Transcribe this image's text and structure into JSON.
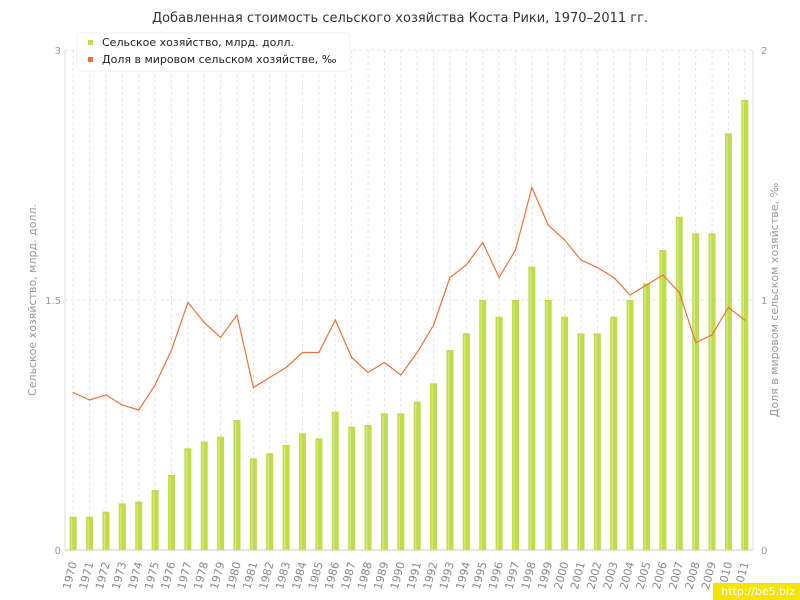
{
  "chart_data": {
    "type": "bar",
    "title": "Добавленная стоимость сельского хозяйства Коста Рики, 1970–2011 гг.",
    "ylabel": "Сельское хозяйство, млрд. долл.",
    "y2label": "Доля в мировом сельском хозяйстве, ‰",
    "ylim": [
      0,
      3
    ],
    "y2lim": [
      0,
      2
    ],
    "yticks": [
      "0",
      "1.5",
      "3"
    ],
    "y2ticks": [
      "0",
      "1",
      "2"
    ],
    "grid": true,
    "legend_position": "top-left",
    "categories": [
      "1970",
      "1971",
      "1972",
      "1973",
      "1974",
      "1975",
      "1976",
      "1977",
      "1978",
      "1979",
      "1980",
      "1981",
      "1982",
      "1983",
      "1984",
      "1985",
      "1986",
      "1987",
      "1988",
      "1989",
      "1990",
      "1991",
      "1992",
      "1993",
      "1994",
      "1995",
      "1996",
      "1997",
      "1998",
      "1999",
      "2000",
      "2001",
      "2002",
      "2003",
      "2004",
      "2005",
      "2006",
      "2007",
      "2008",
      "2009",
      "2010",
      "2011"
    ],
    "series": [
      {
        "name": "Сельское хозяйство, млрд. долл.",
        "type": "bar",
        "axis": "left",
        "color": "#bfdc4a",
        "values": [
          0.2,
          0.2,
          0.23,
          0.28,
          0.29,
          0.36,
          0.45,
          0.61,
          0.65,
          0.68,
          0.78,
          0.55,
          0.58,
          0.63,
          0.7,
          0.67,
          0.83,
          0.74,
          0.75,
          0.82,
          0.82,
          0.89,
          1.0,
          1.2,
          1.3,
          1.5,
          1.4,
          1.5,
          1.7,
          1.5,
          1.4,
          1.3,
          1.3,
          1.4,
          1.5,
          1.6,
          1.8,
          2.0,
          1.9,
          1.9,
          2.5,
          2.7
        ]
      },
      {
        "name": "Доля в мировом сельском хозяйстве, ‰",
        "type": "line",
        "axis": "right",
        "color": "#e8743b",
        "values": [
          0.63,
          0.6,
          0.62,
          0.58,
          0.56,
          0.66,
          0.8,
          0.99,
          0.91,
          0.85,
          0.94,
          0.65,
          0.69,
          0.73,
          0.79,
          0.79,
          0.92,
          0.77,
          0.71,
          0.75,
          0.7,
          0.79,
          0.9,
          1.09,
          1.14,
          1.23,
          1.09,
          1.2,
          1.45,
          1.3,
          1.24,
          1.16,
          1.13,
          1.09,
          1.02,
          1.06,
          1.1,
          1.03,
          0.83,
          0.86,
          0.97,
          0.92
        ]
      }
    ]
  },
  "watermark": "http://be5.biz"
}
